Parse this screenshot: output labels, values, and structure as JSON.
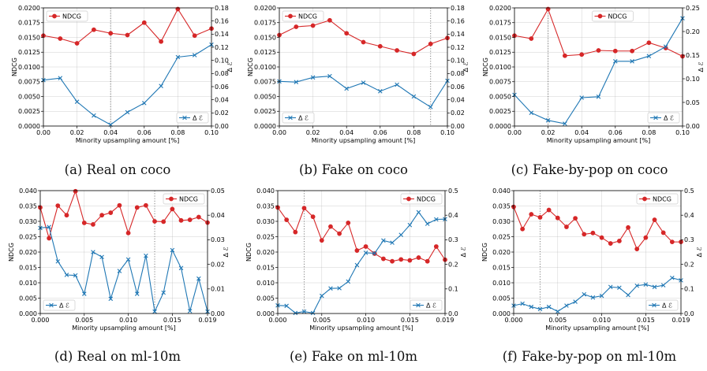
{
  "captions": [
    "(a) Real on coco",
    "(b) Fake on coco",
    "(c) Fake-by-pop on coco",
    "(d) Real on ml-10m",
    "(e) Fake on ml-10m",
    "(f) Fake-by-pop on ml-10m"
  ],
  "colors": {
    "ndcg": "#d62728",
    "delta": "#1f77b4"
  },
  "chart_data": [
    {
      "type": "line",
      "caption": "(a) Real on coco",
      "xlabel": "Minority upsampling amount [%]",
      "ylabel": "NDCG",
      "y2label": "Δ ℰ",
      "xlim": [
        0,
        0.1
      ],
      "ylim": [
        0,
        0.02
      ],
      "y2lim": [
        0,
        0.18
      ],
      "xticks": [
        0,
        0.02,
        0.04,
        0.06,
        0.08,
        0.1
      ],
      "xticklabels": [
        "0.00",
        "0.02",
        "0.04",
        "0.06",
        "0.08",
        "0.10"
      ],
      "yticks": [
        0,
        0.0025,
        0.005,
        0.0075,
        0.01,
        0.0125,
        0.015,
        0.0175,
        0.02
      ],
      "yticklabels": [
        "0.0000",
        "0.0025",
        "0.0050",
        "0.0075",
        "0.0100",
        "0.0125",
        "0.0150",
        "0.0175",
        "0.0200"
      ],
      "y2ticks": [
        0,
        0.02,
        0.04,
        0.06,
        0.08,
        0.1,
        0.12,
        0.14,
        0.16,
        0.18
      ],
      "y2ticklabels": [
        "0.00",
        "0.02",
        "0.04",
        "0.06",
        "0.08",
        "0.10",
        "0.12",
        "0.14",
        "0.16",
        "0.18"
      ],
      "vline": 0.04,
      "grid": true,
      "legend_ndcg": "upper-left",
      "legend_delta": "lower-right",
      "x": [
        0,
        0.01,
        0.02,
        0.03,
        0.04,
        0.05,
        0.06,
        0.07,
        0.08,
        0.09,
        0.1
      ],
      "series": [
        {
          "name": "NDCG",
          "axis": "left",
          "marker": "circle",
          "values": [
            0.0153,
            0.0148,
            0.014,
            0.0163,
            0.0157,
            0.0154,
            0.0175,
            0.0143,
            0.0198,
            0.0153,
            0.0165
          ]
        },
        {
          "name": "Δ ℰ",
          "axis": "right",
          "marker": "x",
          "values": [
            0.07,
            0.073,
            0.037,
            0.016,
            0.002,
            0.021,
            0.035,
            0.061,
            0.105,
            0.108,
            0.124
          ]
        }
      ]
    },
    {
      "type": "line",
      "caption": "(b) Fake on coco",
      "xlabel": "Minority upsampling amount [%]",
      "ylabel": "NDCG",
      "y2label": "Δ ℰ",
      "xlim": [
        0,
        0.1
      ],
      "ylim": [
        0,
        0.02
      ],
      "y2lim": [
        0,
        0.18
      ],
      "xticks": [
        0,
        0.02,
        0.04,
        0.06,
        0.08,
        0.1
      ],
      "xticklabels": [
        "0.00",
        "0.02",
        "0.04",
        "0.06",
        "0.08",
        "0.10"
      ],
      "yticks": [
        0,
        0.0025,
        0.005,
        0.0075,
        0.01,
        0.0125,
        0.015,
        0.0175,
        0.02
      ],
      "yticklabels": [
        "0.0000",
        "0.0025",
        "0.0050",
        "0.0075",
        "0.0100",
        "0.0125",
        "0.0150",
        "0.0175",
        "0.0200"
      ],
      "y2ticks": [
        0,
        0.02,
        0.04,
        0.06,
        0.08,
        0.1,
        0.12,
        0.14,
        0.16,
        0.18
      ],
      "y2ticklabels": [
        "0.00",
        "0.02",
        "0.04",
        "0.06",
        "0.08",
        "0.10",
        "0.12",
        "0.14",
        "0.16",
        "0.18"
      ],
      "vline": 0.09,
      "grid": true,
      "legend_ndcg": "upper-left",
      "legend_delta": "lower-left",
      "x": [
        0,
        0.01,
        0.02,
        0.03,
        0.04,
        0.05,
        0.06,
        0.07,
        0.08,
        0.09,
        0.1
      ],
      "series": [
        {
          "name": "NDCG",
          "axis": "left",
          "marker": "circle",
          "values": [
            0.0154,
            0.0168,
            0.017,
            0.0179,
            0.0157,
            0.0142,
            0.0135,
            0.0128,
            0.0122,
            0.0139,
            0.0149
          ]
        },
        {
          "name": "Δ ℰ",
          "axis": "right",
          "marker": "x",
          "values": [
            0.068,
            0.067,
            0.074,
            0.076,
            0.057,
            0.066,
            0.053,
            0.063,
            0.045,
            0.029,
            0.069
          ]
        }
      ]
    },
    {
      "type": "line",
      "caption": "(c) Fake-by-pop on coco",
      "xlabel": "Minority upsampling amount [%]",
      "ylabel": "NDCG",
      "y2label": "Δ ℰ",
      "xlim": [
        0,
        0.1
      ],
      "ylim": [
        0,
        0.02
      ],
      "y2lim": [
        0,
        0.25
      ],
      "xticks": [
        0,
        0.02,
        0.04,
        0.06,
        0.08,
        0.1
      ],
      "xticklabels": [
        "0.00",
        "0.02",
        "0.04",
        "0.06",
        "0.08",
        "0.10"
      ],
      "yticks": [
        0,
        0.0025,
        0.005,
        0.0075,
        0.01,
        0.0125,
        0.015,
        0.0175,
        0.02
      ],
      "yticklabels": [
        "0.0000",
        "0.0025",
        "0.0050",
        "0.0075",
        "0.0100",
        "0.0125",
        "0.0150",
        "0.0175",
        "0.0200"
      ],
      "y2ticks": [
        0,
        0.05,
        0.1,
        0.15,
        0.2,
        0.25
      ],
      "y2ticklabels": [
        "0.00",
        "0.05",
        "0.10",
        "0.15",
        "0.20",
        "0.25"
      ],
      "vline": 0.02,
      "grid": true,
      "legend_ndcg": "upper-center",
      "legend_delta": "lower-right",
      "x": [
        0,
        0.01,
        0.02,
        0.03,
        0.04,
        0.05,
        0.06,
        0.07,
        0.08,
        0.09,
        0.1
      ],
      "series": [
        {
          "name": "NDCG",
          "axis": "left",
          "marker": "circle",
          "values": [
            0.0153,
            0.0148,
            0.0198,
            0.0119,
            0.0121,
            0.0128,
            0.0127,
            0.0127,
            0.0141,
            0.0132,
            0.0118
          ]
        },
        {
          "name": "Δ ℰ",
          "axis": "right",
          "marker": "x",
          "values": [
            0.066,
            0.028,
            0.012,
            0.005,
            0.06,
            0.062,
            0.137,
            0.137,
            0.148,
            0.168,
            0.228
          ]
        }
      ]
    },
    {
      "type": "line",
      "caption": "(d) Real on ml-10m",
      "xlabel": "Minority upsampling amount [%]",
      "ylabel": "NDCG",
      "y2label": "Δ ℰ",
      "xlim": [
        0,
        0.019
      ],
      "ylim": [
        0,
        0.04
      ],
      "y2lim": [
        0,
        0.05
      ],
      "xticks": [
        0,
        0.005,
        0.01,
        0.015,
        0.019
      ],
      "xticklabels": [
        "0.000",
        "0.005",
        "0.010",
        "0.015",
        "0.019"
      ],
      "yticks": [
        0,
        0.005,
        0.01,
        0.015,
        0.02,
        0.025,
        0.03,
        0.035,
        0.04
      ],
      "yticklabels": [
        "0.000",
        "0.005",
        "0.010",
        "0.015",
        "0.020",
        "0.025",
        "0.030",
        "0.035",
        "0.040"
      ],
      "y2ticks": [
        0,
        0.01,
        0.02,
        0.03,
        0.04,
        0.05
      ],
      "y2ticklabels": [
        "0.00",
        "0.01",
        "0.02",
        "0.03",
        "0.04",
        "0.05"
      ],
      "vline": 0.013,
      "grid": true,
      "legend_ndcg": "upper-right",
      "legend_delta": "lower-left",
      "x": [
        0,
        0.001,
        0.002,
        0.003,
        0.004,
        0.005,
        0.006,
        0.007,
        0.008,
        0.009,
        0.01,
        0.011,
        0.012,
        0.013,
        0.014,
        0.015,
        0.016,
        0.017,
        0.018,
        0.019
      ],
      "series": [
        {
          "name": "NDCG",
          "axis": "left",
          "marker": "circle",
          "values": [
            0.0345,
            0.0245,
            0.0351,
            0.032,
            0.0398,
            0.0295,
            0.029,
            0.032,
            0.0328,
            0.0352,
            0.0262,
            0.0345,
            0.0352,
            0.03,
            0.0299,
            0.034,
            0.0303,
            0.0305,
            0.0314,
            0.0296
          ]
        },
        {
          "name": "Δ ℰ",
          "axis": "right",
          "marker": "x",
          "values": [
            0.0348,
            0.0352,
            0.0212,
            0.0157,
            0.0155,
            0.008,
            0.025,
            0.023,
            0.006,
            0.0173,
            0.022,
            0.008,
            0.0235,
            0.0008,
            0.0085,
            0.0258,
            0.0185,
            0.001,
            0.0142,
            0.0008
          ]
        }
      ]
    },
    {
      "type": "line",
      "caption": "(e) Fake on ml-10m",
      "xlabel": "Minority upsampling amount [%]",
      "ylabel": "NDCG",
      "y2label": "Δ ℰ",
      "xlim": [
        0,
        0.019
      ],
      "ylim": [
        0,
        0.04
      ],
      "y2lim": [
        0,
        0.5
      ],
      "xticks": [
        0,
        0.005,
        0.01,
        0.015,
        0.019
      ],
      "xticklabels": [
        "0.000",
        "0.005",
        "0.010",
        "0.015",
        "0.019"
      ],
      "yticks": [
        0,
        0.005,
        0.01,
        0.015,
        0.02,
        0.025,
        0.03,
        0.035,
        0.04
      ],
      "yticklabels": [
        "0.000",
        "0.005",
        "0.010",
        "0.015",
        "0.020",
        "0.025",
        "0.030",
        "0.035",
        "0.040"
      ],
      "y2ticks": [
        0,
        0.1,
        0.2,
        0.3,
        0.4,
        0.5
      ],
      "y2ticklabels": [
        "0.0",
        "0.1",
        "0.2",
        "0.3",
        "0.4",
        "0.5"
      ],
      "vline": 0.003,
      "grid": true,
      "legend_ndcg": "upper-right",
      "legend_delta": "lower-right",
      "x": [
        0,
        0.001,
        0.002,
        0.003,
        0.004,
        0.005,
        0.006,
        0.007,
        0.008,
        0.009,
        0.01,
        0.011,
        0.012,
        0.013,
        0.014,
        0.015,
        0.016,
        0.017,
        0.018,
        0.019
      ],
      "series": [
        {
          "name": "NDCG",
          "axis": "left",
          "marker": "circle",
          "values": [
            0.0345,
            0.0305,
            0.0265,
            0.0343,
            0.0315,
            0.0238,
            0.0283,
            0.026,
            0.0295,
            0.0205,
            0.0218,
            0.0195,
            0.0178,
            0.017,
            0.0176,
            0.0173,
            0.0182,
            0.017,
            0.0218,
            0.0175
          ]
        },
        {
          "name": "Δ ℰ",
          "axis": "right",
          "marker": "x",
          "values": [
            0.033,
            0.031,
            0.002,
            0.008,
            0.002,
            0.072,
            0.102,
            0.103,
            0.13,
            0.197,
            0.247,
            0.245,
            0.297,
            0.288,
            0.32,
            0.36,
            0.412,
            0.365,
            0.383,
            0.384
          ]
        }
      ]
    },
    {
      "type": "line",
      "caption": "(f) Fake-by-pop on ml-10m",
      "xlabel": "Minority upsampling amount [%]",
      "ylabel": "NDCG",
      "y2label": "Δ ℰ",
      "xlim": [
        0,
        0.019
      ],
      "ylim": [
        0,
        0.04
      ],
      "y2lim": [
        0,
        0.5
      ],
      "xticks": [
        0,
        0.005,
        0.01,
        0.015,
        0.019
      ],
      "xticklabels": [
        "0.000",
        "0.005",
        "0.010",
        "0.015",
        "0.019"
      ],
      "yticks": [
        0,
        0.005,
        0.01,
        0.015,
        0.02,
        0.025,
        0.03,
        0.035,
        0.04
      ],
      "yticklabels": [
        "0.000",
        "0.005",
        "0.010",
        "0.015",
        "0.020",
        "0.025",
        "0.030",
        "0.035",
        "0.040"
      ],
      "y2ticks": [
        0,
        0.1,
        0.2,
        0.3,
        0.4,
        0.5
      ],
      "y2ticklabels": [
        "0.0",
        "0.1",
        "0.2",
        "0.3",
        "0.4",
        "0.5"
      ],
      "vline": 0.003,
      "grid": true,
      "legend_ndcg": "upper-right",
      "legend_delta": "lower-right",
      "x": [
        0,
        0.001,
        0.002,
        0.003,
        0.004,
        0.005,
        0.006,
        0.007,
        0.008,
        0.009,
        0.01,
        0.011,
        0.012,
        0.013,
        0.014,
        0.015,
        0.016,
        0.017,
        0.018,
        0.019
      ],
      "series": [
        {
          "name": "NDCG",
          "axis": "left",
          "marker": "circle",
          "values": [
            0.0347,
            0.0275,
            0.0323,
            0.0313,
            0.0337,
            0.0311,
            0.0282,
            0.031,
            0.0258,
            0.0262,
            0.0247,
            0.0228,
            0.0236,
            0.028,
            0.021,
            0.0247,
            0.0305,
            0.0263,
            0.0233,
            0.0233
          ]
        },
        {
          "name": "Δ ℰ",
          "axis": "right",
          "marker": "x",
          "values": [
            0.032,
            0.04,
            0.027,
            0.018,
            0.027,
            0.008,
            0.032,
            0.048,
            0.078,
            0.065,
            0.072,
            0.108,
            0.105,
            0.075,
            0.113,
            0.118,
            0.108,
            0.115,
            0.145,
            0.135
          ]
        }
      ]
    }
  ]
}
